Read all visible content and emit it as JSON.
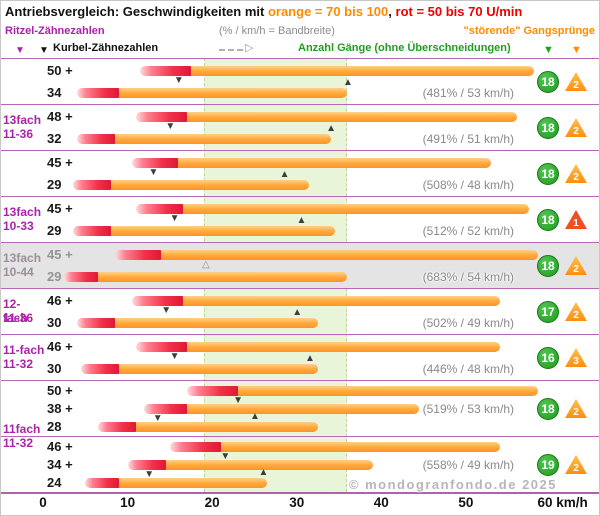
{
  "title": {
    "prefix": "Antriebsvergleich: Geschwindigkeiten mit ",
    "orange": "orange = 70 bis 100",
    "comma": ", ",
    "red": "rot = 50 bis 70 U/min"
  },
  "header": {
    "ritzel": "Ritzel-Zähnezahlen",
    "kurbel": "Kurbel-Zähnezahlen",
    "band": "(% / km/h = Bandbreite)",
    "gears": "Anzahl Gänge (ohne Überschneidungen)",
    "jumps": "\"störende\" Gangsprünge"
  },
  "icons": {
    "down_arrow": "▼",
    "dashed_arrow_head": "▷"
  },
  "watermark": "© mondogranfondo.de 2025",
  "colors": {
    "purple": "#aa22aa",
    "line_purple": "#b866b8",
    "orange": "#ff8c00",
    "red": "#ee0000",
    "green": "#1fa01f",
    "gray_text": "#8a8a8a",
    "band_green": "#e9f5d8",
    "gray_row": "#e4e4e4"
  },
  "chart_data": {
    "type": "bar",
    "orientation": "horizontal",
    "title": "Antriebsvergleich: Geschwindigkeiten mit orange = 70 bis 100, rot = 50 bis 70 U/min",
    "legend": {
      "orange_bar": "70 bis 100 U/min",
      "red_bar": "50 bis 70 U/min"
    },
    "x_axis": {
      "label": "km/h",
      "min": 0,
      "max": 60,
      "tick_values": [
        0,
        10,
        20,
        30,
        40,
        50,
        60
      ],
      "tick_labels": [
        "0",
        "10",
        "20",
        "30",
        "40",
        "50",
        "60 km/h"
      ]
    },
    "highlight_band_kmh": [
      19,
      36
    ],
    "groups": [
      {
        "line1": "13fach",
        "line2": "11-36",
        "rows": [
          0,
          1,
          2
        ]
      },
      {
        "line1": "13fach",
        "line2": "10-33",
        "rows": [
          3
        ]
      },
      {
        "line1": "13fach",
        "line2": "10-44",
        "rows": [
          4
        ],
        "grayed": true
      },
      {
        "line1": "12-fach",
        "line2": "11-36",
        "rows": [
          5
        ]
      },
      {
        "line1": "11-fach",
        "line2": "11-32",
        "rows": [
          6
        ]
      },
      {
        "line1": "11fach",
        "line2": "11-32",
        "rows": [
          7,
          8
        ]
      }
    ],
    "rows": [
      {
        "rings": [
          {
            "label": "50 +",
            "red": [
              11.5,
              17.5
            ],
            "orange": [
              14,
              58
            ]
          },
          {
            "label": "34",
            "red": [
              4,
              9
            ],
            "orange": [
              6,
              36
            ]
          }
        ],
        "annotation": "(481% / 53 km/h)",
        "gears": "18",
        "jumps": "2",
        "markers": [
          {
            "x": 16,
            "dir": "down",
            "sub": 0
          },
          {
            "x": 36,
            "dir": "up",
            "sub": 1
          }
        ]
      },
      {
        "rings": [
          {
            "label": "48 +",
            "red": [
              11,
              17
            ],
            "orange": [
              13.5,
              56
            ]
          },
          {
            "label": "32",
            "red": [
              4,
              8.5
            ],
            "orange": [
              5.5,
              34
            ]
          }
        ],
        "annotation": "(491% / 51 km/h)",
        "gears": "18",
        "jumps": "2",
        "markers": [
          {
            "x": 15,
            "dir": "down",
            "sub": 0
          },
          {
            "x": 34,
            "dir": "up",
            "sub": 1
          }
        ]
      },
      {
        "rings": [
          {
            "label": "45 +",
            "red": [
              10.5,
              16
            ],
            "orange": [
              12.5,
              53
            ]
          },
          {
            "label": "29",
            "red": [
              3.5,
              8
            ],
            "orange": [
              5,
              31.5
            ]
          }
        ],
        "annotation": "(508% / 48 km/h)",
        "gears": "18",
        "jumps": "2",
        "markers": [
          {
            "x": 13,
            "dir": "down",
            "sub": 0
          },
          {
            "x": 28.5,
            "dir": "up",
            "sub": 1
          }
        ]
      },
      {
        "rings": [
          {
            "label": "45 +",
            "red": [
              11,
              16.5
            ],
            "orange": [
              13,
              57.5
            ]
          },
          {
            "label": "29",
            "red": [
              3.5,
              8
            ],
            "orange": [
              5,
              34.5
            ]
          }
        ],
        "annotation": "(512% / 52 km/h)",
        "gears": "18",
        "jumps": "1",
        "jump_color": "#f04e23",
        "markers": [
          {
            "x": 15.5,
            "dir": "down",
            "sub": 0
          },
          {
            "x": 30.5,
            "dir": "up",
            "sub": 1
          }
        ]
      },
      {
        "rings": [
          {
            "label": "45 +",
            "red": [
              8.5,
              14
            ],
            "orange": [
              10.5,
              58.5
            ]
          },
          {
            "label": "29",
            "red": [
              2.5,
              6.5
            ],
            "orange": [
              4,
              36
            ]
          }
        ],
        "annotation": "(683% / 54 km/h)",
        "gears": "18",
        "jumps": "2",
        "grayed": true,
        "markers": [
          {
            "x": 19.2,
            "dir": "outline-up",
            "sub": 0
          }
        ]
      },
      {
        "rings": [
          {
            "label": "46 +",
            "red": [
              10.5,
              16.5
            ],
            "orange": [
              13,
              54
            ]
          },
          {
            "label": "30",
            "red": [
              4,
              8.5
            ],
            "orange": [
              5.5,
              32.5
            ]
          }
        ],
        "annotation": "(502% / 49 km/h)",
        "gears": "17",
        "jumps": "2",
        "markers": [
          {
            "x": 14.5,
            "dir": "down",
            "sub": 0
          },
          {
            "x": 30,
            "dir": "up",
            "sub": 1
          }
        ]
      },
      {
        "rings": [
          {
            "label": "46 +",
            "red": [
              11,
              17
            ],
            "orange": [
              13.5,
              54
            ]
          },
          {
            "label": "30",
            "red": [
              4.5,
              9
            ],
            "orange": [
              6,
              32.5
            ]
          }
        ],
        "annotation": "(446% / 48 km/h)",
        "gears": "16",
        "jumps": "3",
        "markers": [
          {
            "x": 15.5,
            "dir": "down",
            "sub": 0
          },
          {
            "x": 31.5,
            "dir": "up",
            "sub": 1
          }
        ]
      },
      {
        "rings": [
          {
            "label": "50 +",
            "red": [
              17,
              23
            ],
            "orange": [
              19,
              58.5
            ]
          },
          {
            "label": "38 +",
            "red": [
              12,
              17
            ],
            "orange": [
              14,
              44.5
            ]
          },
          {
            "label": "28",
            "red": [
              6.5,
              11
            ],
            "orange": [
              8,
              32.5
            ]
          }
        ],
        "annotation": "(519% / 53 km/h)",
        "gears": "18",
        "jumps": "2",
        "markers": [
          {
            "x": 23,
            "dir": "down",
            "sub": 0
          },
          {
            "x": 13.5,
            "dir": "down",
            "sub": 1
          },
          {
            "x": 25,
            "dir": "up",
            "sub": 2
          }
        ]
      },
      {
        "rings": [
          {
            "label": "46 +",
            "red": [
              15,
              21
            ],
            "orange": [
              17.5,
              54
            ]
          },
          {
            "label": "34 +",
            "red": [
              10,
              14.5
            ],
            "orange": [
              12,
              39
            ]
          },
          {
            "label": "24",
            "red": [
              5,
              9
            ],
            "orange": [
              6.5,
              26.5
            ]
          }
        ],
        "annotation": "(558% / 49 km/h)",
        "gears": "19",
        "jumps": "2",
        "markers": [
          {
            "x": 21.5,
            "dir": "down",
            "sub": 0
          },
          {
            "x": 12.5,
            "dir": "down",
            "sub": 1
          },
          {
            "x": 26,
            "dir": "up",
            "sub": 2
          }
        ]
      }
    ]
  }
}
